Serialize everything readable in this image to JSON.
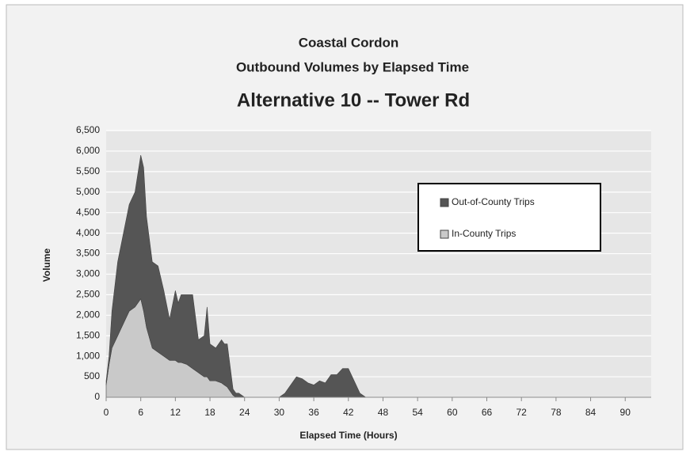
{
  "chart_data": {
    "type": "stacked_area",
    "title": [
      "Coastal Cordon",
      "Outbound Volumes by Elapsed Time",
      "Alternative 10 -- Tower Rd"
    ],
    "xlabel": "Elapsed Time (Hours)",
    "ylabel": "Volume",
    "x": [
      0,
      0.5,
      1,
      2,
      3,
      4,
      5,
      6,
      6.5,
      7,
      8,
      9,
      10,
      11,
      12,
      12.5,
      13,
      14,
      15,
      16,
      17,
      17.5,
      18,
      19,
      20,
      20.5,
      21,
      22,
      22.5,
      23,
      24,
      25,
      30,
      31,
      32,
      33,
      34,
      35,
      36,
      37,
      38,
      39,
      40,
      41,
      42,
      43,
      44,
      45
    ],
    "series": [
      {
        "name": "In-County Trips",
        "color": "#c9c9c9",
        "values": [
          300,
          800,
          1200,
          1500,
          1800,
          2100,
          2200,
          2400,
          2100,
          1700,
          1200,
          1100,
          1000,
          900,
          900,
          850,
          850,
          800,
          700,
          600,
          500,
          500,
          400,
          400,
          350,
          300,
          250,
          50,
          0,
          0,
          0,
          0,
          0,
          0,
          0,
          0,
          0,
          0,
          0,
          0,
          0,
          0,
          0,
          0,
          0,
          0,
          0,
          0
        ]
      },
      {
        "name": "Out-of-County Trips",
        "color": "#555555",
        "values": [
          100,
          200,
          900,
          1800,
          2200,
          2600,
          2800,
          3500,
          3500,
          2700,
          2100,
          2100,
          1600,
          1000,
          1700,
          1450,
          1650,
          1700,
          1800,
          800,
          1000,
          1700,
          900,
          800,
          1050,
          1000,
          1050,
          150,
          100,
          100,
          0,
          0,
          0,
          100,
          300,
          500,
          450,
          350,
          300,
          400,
          350,
          550,
          550,
          700,
          700,
          400,
          100,
          0
        ]
      }
    ],
    "xlim": [
      0,
      94.5
    ],
    "xticks": [
      0,
      6,
      12,
      18,
      24,
      30,
      36,
      42,
      48,
      54,
      60,
      66,
      72,
      78,
      84,
      90
    ],
    "ylim": [
      0,
      6500
    ],
    "yticks": [
      0,
      500,
      {
        "value": 1000,
        "label": "1,000"
      },
      {
        "value": 1500,
        "label": "1,500"
      },
      {
        "value": 2000,
        "label": "2,000"
      },
      {
        "value": 2500,
        "label": "2,500"
      },
      {
        "value": 3000,
        "label": "3,000"
      },
      {
        "value": 3500,
        "label": "3,500"
      },
      {
        "value": 4000,
        "label": "4,000"
      },
      {
        "value": 4500,
        "label": "4,500"
      },
      {
        "value": 5000,
        "label": "5,000"
      },
      {
        "value": 5500,
        "label": "5,500"
      },
      {
        "value": 6000,
        "label": "6,000"
      },
      {
        "value": 6500,
        "label": "6,500"
      }
    ],
    "grid": true,
    "legend": "upper right"
  }
}
